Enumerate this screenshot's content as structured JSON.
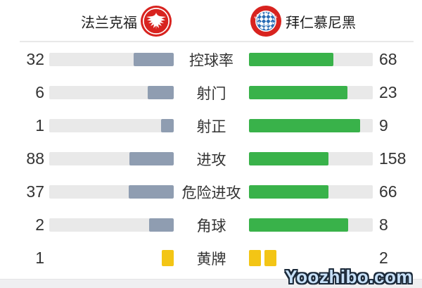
{
  "header": {
    "home_team": "法兰克福",
    "away_team": "拜仁慕尼黑",
    "away_logo_top_text": "FC BAYERN",
    "away_logo_bottom_text": "MÜNCHEN"
  },
  "colors": {
    "home_fill": "#8f9db1",
    "away_fill": "#39b24a",
    "track": "#e9e9e9",
    "yellow_card": "#f3c515",
    "logo_red": "#d8231f",
    "logo_blue": "#2a6db5"
  },
  "watermark": "Yoozhibo.com",
  "rows": [
    {
      "label": "控球率",
      "home": 32,
      "away": 68,
      "style": "bar"
    },
    {
      "label": "射门",
      "home": 6,
      "away": 23,
      "style": "bar"
    },
    {
      "label": "射正",
      "home": 1,
      "away": 9,
      "style": "bar"
    },
    {
      "label": "进攻",
      "home": 88,
      "away": 158,
      "style": "bar"
    },
    {
      "label": "危险进攻",
      "home": 37,
      "away": 66,
      "style": "bar"
    },
    {
      "label": "角球",
      "home": 2,
      "away": 8,
      "style": "bar"
    },
    {
      "label": "黄牌",
      "home": 1,
      "away": 2,
      "style": "cards"
    }
  ],
  "chart_data": {
    "type": "bar",
    "title": "法兰克福 vs 拜仁慕尼黑",
    "categories": [
      "控球率",
      "射门",
      "射正",
      "进攻",
      "危险进攻",
      "角球",
      "黄牌"
    ],
    "series": [
      {
        "name": "法兰克福",
        "values": [
          32,
          6,
          1,
          88,
          37,
          2,
          1
        ]
      },
      {
        "name": "拜仁慕尼黑",
        "values": [
          68,
          23,
          9,
          158,
          66,
          8,
          2
        ]
      }
    ],
    "layout": "paired horizontal bars; each bar filled proportionally to value/(home+away); home fill anchored right in gray-blue, away fill anchored left in green; yellow-card row drawn as card icons",
    "legend_position": "top"
  }
}
